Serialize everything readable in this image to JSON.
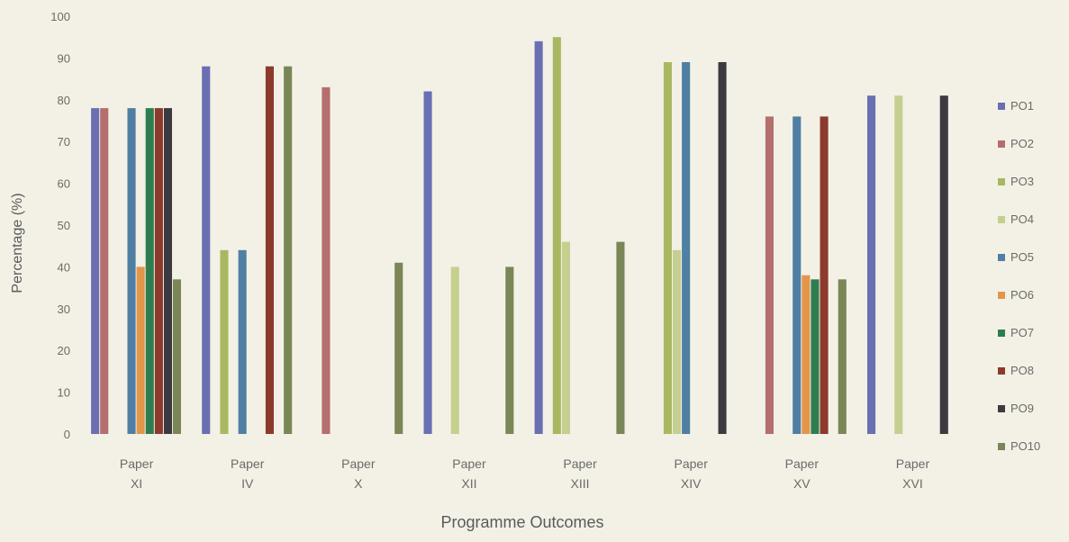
{
  "chart_data": {
    "type": "bar",
    "xlabel": "Programme Outcomes",
    "ylabel": "Percentage (%)",
    "ylim": [
      0,
      100
    ],
    "yticks": [
      0,
      10,
      20,
      30,
      40,
      50,
      60,
      70,
      80,
      90,
      100
    ],
    "grid": false,
    "legend_position": "right",
    "categories": [
      [
        "Paper",
        "XI"
      ],
      [
        "Paper",
        "IV"
      ],
      [
        "Paper",
        "X"
      ],
      [
        "Paper",
        "XII"
      ],
      [
        "Paper",
        "XIII"
      ],
      [
        "Paper",
        "XIV"
      ],
      [
        "Paper",
        "XV"
      ],
      [
        "Paper",
        "XVI"
      ]
    ],
    "series": [
      {
        "name": "PO1",
        "color": "#6a6fb3",
        "values": [
          78,
          88,
          null,
          82,
          94,
          null,
          null,
          81
        ]
      },
      {
        "name": "PO2",
        "color": "#b46e6e",
        "values": [
          78,
          null,
          83,
          null,
          null,
          null,
          76,
          null
        ]
      },
      {
        "name": "PO3",
        "color": "#a9b860",
        "values": [
          null,
          44,
          null,
          null,
          95,
          89,
          null,
          null
        ]
      },
      {
        "name": "PO4",
        "color": "#c5cf8f",
        "values": [
          null,
          null,
          null,
          40,
          46,
          44,
          null,
          81
        ]
      },
      {
        "name": "PO5",
        "color": "#4f7fa3",
        "values": [
          78,
          44,
          null,
          null,
          null,
          89,
          76,
          null
        ]
      },
      {
        "name": "PO6",
        "color": "#e2964a",
        "values": [
          40,
          null,
          null,
          null,
          null,
          null,
          38,
          null
        ]
      },
      {
        "name": "PO7",
        "color": "#2e7d51",
        "values": [
          78,
          null,
          null,
          null,
          null,
          null,
          37,
          null
        ]
      },
      {
        "name": "PO8",
        "color": "#8c3a2c",
        "values": [
          78,
          88,
          null,
          null,
          null,
          null,
          76,
          null
        ]
      },
      {
        "name": "PO9",
        "color": "#3c3a40",
        "values": [
          78,
          null,
          null,
          null,
          null,
          89,
          null,
          81
        ]
      },
      {
        "name": "PO10",
        "color": "#7a8656",
        "values": [
          37,
          88,
          41,
          40,
          46,
          null,
          37,
          null
        ]
      }
    ]
  }
}
